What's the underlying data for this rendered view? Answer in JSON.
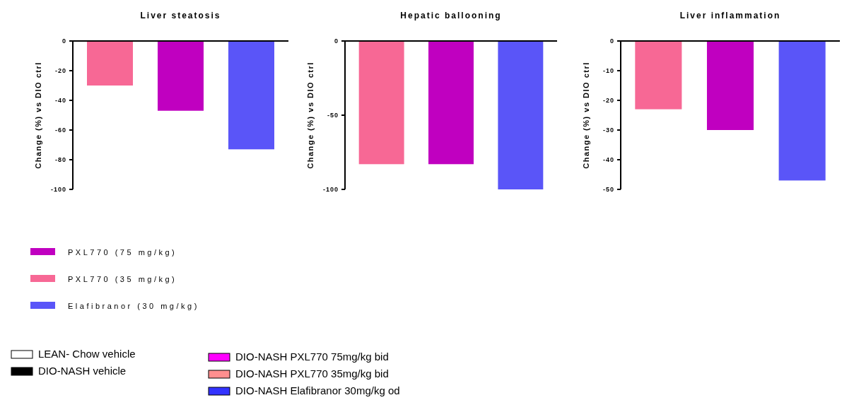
{
  "chart_data": [
    {
      "type": "bar",
      "title": "Liver steatosis",
      "ylabel": "Change (%) vs DIO ctrl",
      "categories": [
        null,
        null,
        null
      ],
      "ylim": [
        -100,
        0
      ],
      "yticks": [
        0,
        -20,
        -40,
        -60,
        -80,
        -100
      ],
      "legend": "bottom",
      "series": [
        {
          "name": "PXL770 (75 mg/kg)",
          "color": "#c000c0",
          "values": [
            null,
            -47,
            null
          ]
        },
        {
          "name": "PXL770 (35 mg/kg)",
          "color": "#f76895",
          "values": [
            -30,
            null,
            null
          ]
        },
        {
          "name": "Elafibranor (30 mg/kg)",
          "color": "#5a55f8",
          "values": [
            null,
            null,
            -73
          ]
        }
      ],
      "annotations": [
        "LEAN- Chow vehicle",
        "DIO-NASH vehicle",
        "DIO-NASH PXL770 75mg/kg bid",
        "DIO-NASH PXL770 35mg/kg bid",
        "DIO-NASH Elafibranor 30mg/kg od"
      ]
    },
    {
      "type": "bar",
      "title": "Hepatic ballooning",
      "ylabel": "Change (%) vs DIO ctrl",
      "categories": [
        null,
        null,
        null
      ],
      "ylim": [
        -100,
        0
      ],
      "yticks": [
        0,
        -50,
        -100
      ],
      "series": [
        {
          "color": "#c000c0",
          "values": [
            null,
            -83,
            null
          ]
        },
        {
          "color": "#f76895",
          "values": [
            -83,
            null,
            null
          ]
        },
        {
          "color": "#5a55f8",
          "values": [
            null,
            null,
            -100
          ]
        }
      ]
    },
    {
      "type": "bar",
      "title": "Liver inflammation",
      "ylabel": "Change (%) vs DIO ctrl",
      "categories": [
        null,
        null,
        null
      ],
      "ylim": [
        -50,
        0
      ],
      "yticks": [
        0,
        -10,
        -20,
        -30,
        -40,
        -50
      ],
      "series": [
        {
          "color": "#c000c0",
          "values": [
            null,
            -30,
            null
          ]
        },
        {
          "color": "#f76895",
          "values": [
            -23,
            null,
            null
          ]
        },
        {
          "color": "#5a55f8",
          "values": [
            null,
            null,
            -47
          ]
        }
      ]
    }
  ]
}
